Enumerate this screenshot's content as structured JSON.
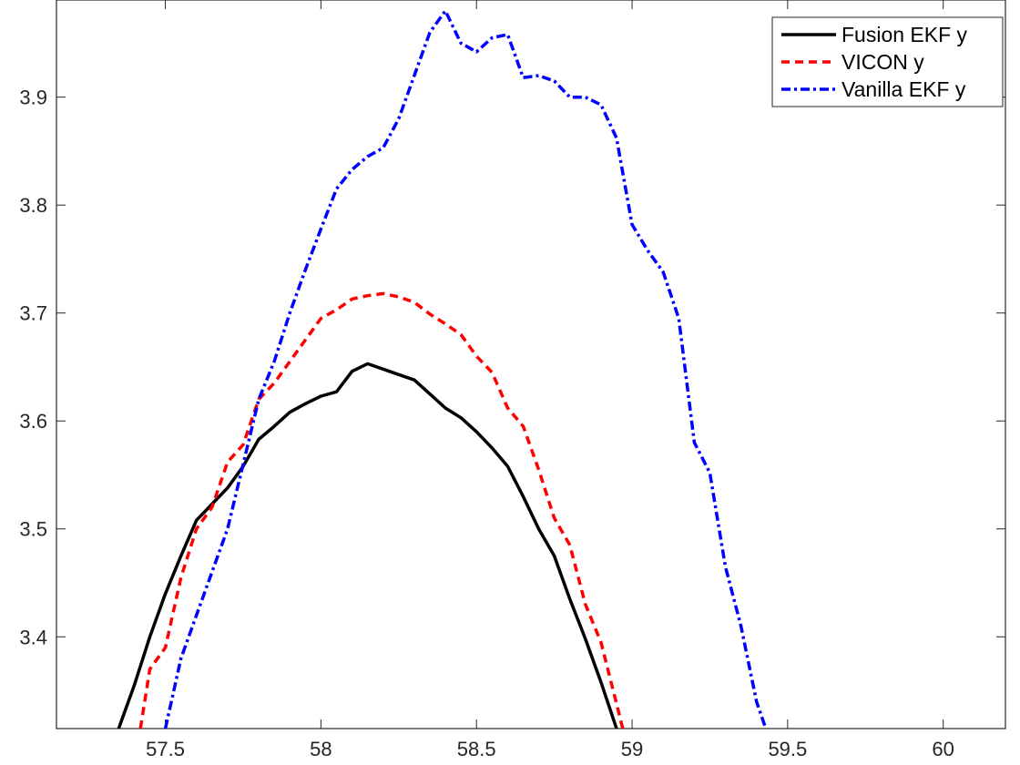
{
  "chart_data": {
    "type": "line",
    "title": "",
    "xlabel": "",
    "ylabel": "",
    "xlim": [
      57.15,
      60.2
    ],
    "ylim": [
      3.315,
      3.99
    ],
    "xticks": [
      57.5,
      58,
      58.5,
      59,
      59.5,
      60
    ],
    "xtick_labels": [
      "57.5",
      "58",
      "58.5",
      "59",
      "59.5",
      "60"
    ],
    "yticks": [
      3.4,
      3.5,
      3.6,
      3.7,
      3.8,
      3.9
    ],
    "ytick_labels": [
      "3.4",
      "3.5",
      "3.6",
      "3.7",
      "3.8",
      "3.9"
    ],
    "grid": false,
    "legend_position": "top-right",
    "series": [
      {
        "name": "Fusion EKF y",
        "color": "#000000",
        "dash": "solid",
        "x": [
          57.35,
          57.4,
          57.45,
          57.5,
          57.55,
          57.6,
          57.65,
          57.7,
          57.75,
          57.8,
          57.85,
          57.9,
          57.95,
          58.0,
          58.05,
          58.1,
          58.15,
          58.2,
          58.25,
          58.3,
          58.35,
          58.4,
          58.45,
          58.5,
          58.55,
          58.6,
          58.65,
          58.7,
          58.75,
          58.8,
          58.85,
          58.9,
          58.95
        ],
        "y": [
          3.315,
          3.355,
          3.4,
          3.44,
          3.475,
          3.508,
          3.523,
          3.538,
          3.558,
          3.583,
          3.595,
          3.608,
          3.616,
          3.623,
          3.627,
          3.646,
          3.653,
          3.648,
          3.643,
          3.638,
          3.625,
          3.612,
          3.603,
          3.59,
          3.575,
          3.558,
          3.53,
          3.5,
          3.475,
          3.435,
          3.398,
          3.358,
          3.315
        ]
      },
      {
        "name": "VICON y",
        "color": "#ff0000",
        "dash": "dashed",
        "x": [
          57.42,
          57.45,
          57.5,
          57.55,
          57.6,
          57.65,
          57.7,
          57.75,
          57.8,
          57.85,
          57.9,
          57.95,
          58.0,
          58.05,
          58.1,
          58.15,
          58.2,
          58.25,
          58.3,
          58.35,
          58.4,
          58.45,
          58.5,
          58.55,
          58.6,
          58.65,
          58.7,
          58.75,
          58.8,
          58.85,
          58.9,
          58.95,
          58.97
        ],
        "y": [
          3.315,
          3.37,
          3.39,
          3.455,
          3.5,
          3.52,
          3.562,
          3.578,
          3.62,
          3.635,
          3.655,
          3.675,
          3.695,
          3.703,
          3.713,
          3.716,
          3.718,
          3.715,
          3.71,
          3.699,
          3.69,
          3.68,
          3.66,
          3.645,
          3.612,
          3.595,
          3.555,
          3.51,
          3.485,
          3.43,
          3.395,
          3.338,
          3.315
        ]
      },
      {
        "name": "Vanilla EKF y",
        "color": "#0000ff",
        "dash": "dashdot",
        "x": [
          57.5,
          57.55,
          57.6,
          57.65,
          57.7,
          57.75,
          57.8,
          57.85,
          57.9,
          57.95,
          58.0,
          58.05,
          58.1,
          58.15,
          58.2,
          58.25,
          58.3,
          58.35,
          58.4,
          58.45,
          58.5,
          58.55,
          58.6,
          58.65,
          58.7,
          58.75,
          58.8,
          58.85,
          58.9,
          58.95,
          59.0,
          59.05,
          59.1,
          59.15,
          59.2,
          59.25,
          59.3,
          59.35,
          59.4,
          59.43
        ],
        "y": [
          3.315,
          3.38,
          3.42,
          3.46,
          3.5,
          3.56,
          3.62,
          3.655,
          3.7,
          3.74,
          3.778,
          3.815,
          3.833,
          3.845,
          3.853,
          3.88,
          3.92,
          3.96,
          3.98,
          3.95,
          3.942,
          3.955,
          3.958,
          3.918,
          3.92,
          3.915,
          3.9,
          3.9,
          3.893,
          3.862,
          3.782,
          3.758,
          3.738,
          3.695,
          3.58,
          3.552,
          3.465,
          3.41,
          3.34,
          3.315
        ]
      }
    ]
  }
}
